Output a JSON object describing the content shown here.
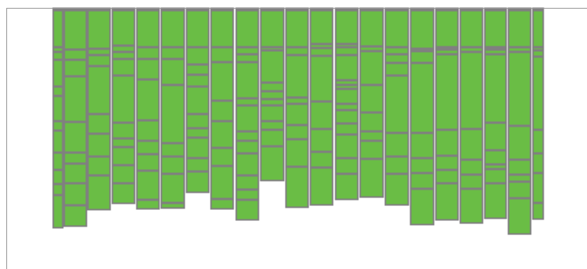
{
  "chart_data": {
    "type": "bar",
    "stacked": true,
    "orientation": "vertical",
    "direction": "top-down",
    "grid": false,
    "legend": "none",
    "title": "",
    "xlabel": "",
    "ylabel": "",
    "colors": {
      "bar_fill": "#6abd45",
      "bar_stroke": "#808080",
      "axis": "#999999",
      "background": "#ffffff"
    },
    "ylim": [
      0,
      332
    ],
    "bar_count": 21,
    "stacks": [
      [
        3,
        47,
        6,
        10,
        34,
        12,
        32,
        12,
        28,
        22,
        18,
        14,
        42
      ],
      [
        3,
        50,
        13,
        21,
        58,
        39,
        14,
        25,
        28,
        27
      ],
      [
        3,
        49,
        8,
        14,
        61,
        25,
        29,
        24,
        44
      ],
      [
        3,
        45,
        8,
        9,
        21,
        60,
        20,
        11,
        23,
        23,
        26
      ],
      [
        3,
        47,
        15,
        26,
        52,
        26,
        17,
        21,
        37,
        12
      ],
      [
        3,
        47,
        15,
        33,
        74,
        17,
        22,
        37,
        7
      ],
      [
        3,
        47,
        22,
        13,
        15,
        35,
        18,
        12,
        26,
        17,
        27
      ],
      [
        3,
        47,
        19,
        49,
        26,
        34,
        23,
        42,
        13
      ],
      [
        3,
        47,
        9,
        10,
        46,
        9,
        33,
        12,
        16,
        28,
        18,
        13,
        26
      ],
      [
        3,
        47,
        4,
        41,
        11,
        10,
        8,
        20,
        11,
        21,
        44
      ],
      [
        3,
        47,
        10,
        54,
        8,
        27,
        18,
        35,
        52
      ],
      [
        3,
        43,
        5,
        10,
        58,
        35,
        29,
        20,
        48
      ],
      [
        3,
        43,
        4,
        10,
        32,
        6,
        5,
        19,
        8,
        17,
        14,
        30,
        20,
        33
      ],
      [
        3,
        46,
        6,
        43,
        35,
        24,
        12,
        23,
        49
      ],
      [
        3,
        47,
        9,
        11,
        16,
        73,
        30,
        22,
        40
      ],
      [
        3,
        49,
        3,
        15,
        89,
        32,
        19,
        20,
        46
      ],
      [
        3,
        47,
        3,
        6,
        96,
        33,
        18,
        17,
        47
      ],
      [
        3,
        47,
        6,
        98,
        39,
        19,
        18,
        44
      ],
      [
        3,
        47,
        3,
        6,
        87,
        35,
        18,
        6,
        18,
        45
      ],
      [
        3,
        47,
        6,
        94,
        43,
        19,
        9,
        21,
        46
      ],
      [
        3,
        47,
        4,
        8,
        93,
        30,
        25,
        38,
        21
      ]
    ]
  }
}
